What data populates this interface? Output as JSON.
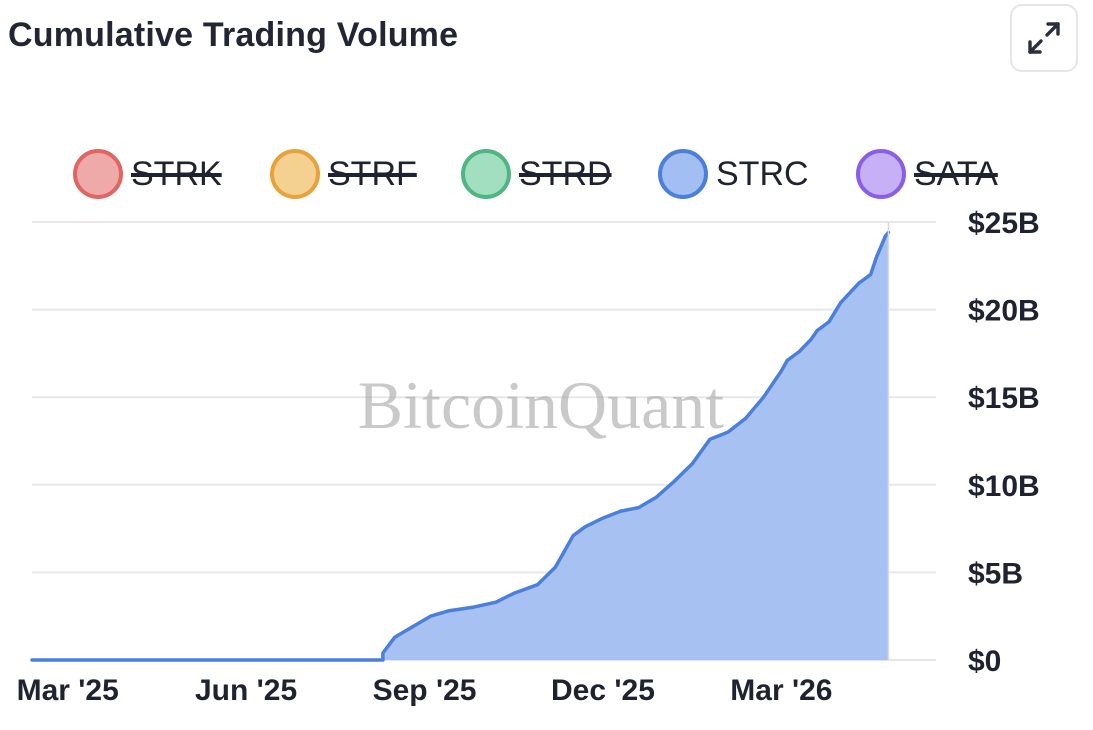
{
  "header": {
    "title": "Cumulative Trading Volume",
    "expand_icon": "expand-arrows-icon"
  },
  "watermark": "BitcoinQuant",
  "legend": [
    {
      "label": "STRK",
      "color": "#e06666",
      "fill": "#eea9a9",
      "active": false
    },
    {
      "label": "STRF",
      "color": "#e8a23b",
      "fill": "#f4d190",
      "active": false
    },
    {
      "label": "STRD",
      "color": "#4fb583",
      "fill": "#a2dfc0",
      "active": false
    },
    {
      "label": "STRC",
      "color": "#4a7fdc",
      "fill": "#a3bef2",
      "active": true
    },
    {
      "label": "SATA",
      "color": "#8a5fe8",
      "fill": "#c7b0f5",
      "active": false
    }
  ],
  "chart_data": {
    "type": "area",
    "title": "Cumulative Trading Volume",
    "xlabel": "",
    "ylabel": "",
    "y_unit": "USD billions",
    "ylim": [
      0,
      25
    ],
    "y_ticks": [
      0,
      5,
      10,
      15,
      20,
      25
    ],
    "y_tick_labels": [
      "$0",
      "$5B",
      "$10B",
      "$15B",
      "$20B",
      "$25B"
    ],
    "x_tick_labels": [
      "Mar '25",
      "Jun '25",
      "Sep '25",
      "Dec '25",
      "Mar '26"
    ],
    "x_tick_month_index": [
      0,
      3,
      6,
      9,
      12
    ],
    "xlim_month_index": [
      -0.6,
      14.6
    ],
    "grid": true,
    "series": [
      {
        "name": "STRC",
        "color": "#4a7fdc",
        "fill": "#a3bef2",
        "x_month_index": [
          5.3,
          5.5,
          5.8,
          6.1,
          6.4,
          6.8,
          7.2,
          7.5,
          7.9,
          8.2,
          8.5,
          8.7,
          9.0,
          9.3,
          9.6,
          9.9,
          10.2,
          10.5,
          10.8,
          11.1,
          11.4,
          11.7,
          12.0,
          12.1,
          12.3,
          12.5,
          12.6,
          12.8,
          13.0,
          13.3,
          13.5,
          13.6,
          13.7,
          13.75,
          13.8
        ],
        "values": [
          0.4,
          1.3,
          1.9,
          2.5,
          2.8,
          3.0,
          3.3,
          3.8,
          4.3,
          5.3,
          7.1,
          7.6,
          8.1,
          8.5,
          8.7,
          9.3,
          10.2,
          11.2,
          12.6,
          13.0,
          13.8,
          15.0,
          16.5,
          17.1,
          17.6,
          18.3,
          18.8,
          19.3,
          20.4,
          21.5,
          22.0,
          23.0,
          23.8,
          24.2,
          24.4
        ]
      }
    ]
  }
}
